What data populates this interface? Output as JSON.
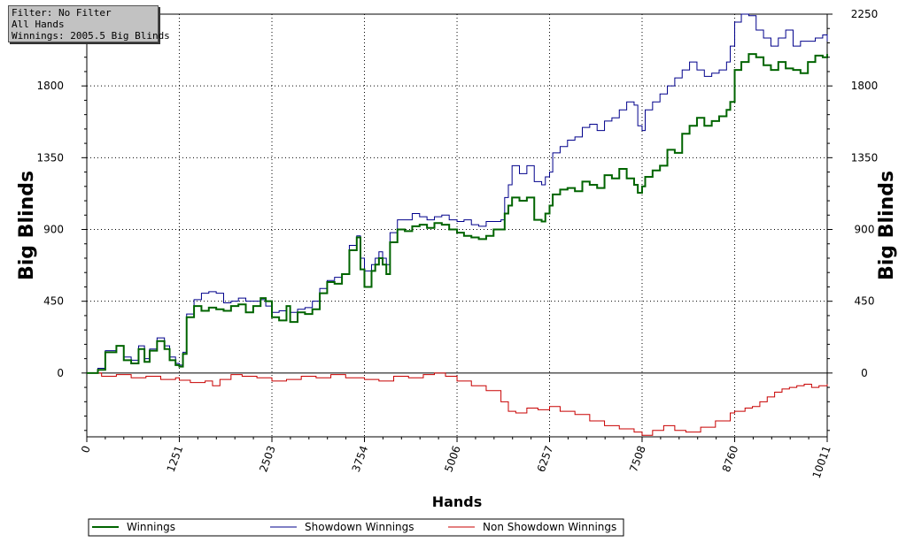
{
  "info_box": {
    "filter": "Filter: No Filter",
    "hands": "All Hands",
    "winnings": "Winnings: 2005.5 Big Blinds"
  },
  "colors": {
    "winnings": "#006400",
    "showdown": "#00008b",
    "non_showdown": "#c80000"
  },
  "chart_data": {
    "type": "line",
    "xlabel": "Hands",
    "ylabel_left": "Big Blinds",
    "ylabel_right": "Big Blinds",
    "xlim": [
      0,
      10011
    ],
    "ylim": [
      -400,
      2250
    ],
    "x_ticks": [
      "0",
      "1251",
      "2503",
      "3754",
      "5006",
      "6257",
      "7508",
      "8760",
      "10011"
    ],
    "y_ticks": [
      "0",
      "450",
      "900",
      "1350",
      "1800",
      "2250"
    ],
    "grid": true,
    "legend_position": "bottom",
    "series": [
      {
        "name": "Winnings",
        "color_key": "winnings",
        "x": [
          0,
          150,
          250,
          400,
          500,
          600,
          700,
          780,
          850,
          950,
          1050,
          1120,
          1200,
          1251,
          1300,
          1350,
          1450,
          1550,
          1650,
          1750,
          1850,
          1950,
          2050,
          2150,
          2250,
          2350,
          2420,
          2503,
          2600,
          2700,
          2750,
          2850,
          2950,
          3050,
          3150,
          3250,
          3350,
          3450,
          3550,
          3650,
          3700,
          3754,
          3850,
          3900,
          3950,
          4000,
          4050,
          4100,
          4200,
          4300,
          4400,
          4500,
          4600,
          4700,
          4800,
          4900,
          5006,
          5100,
          5200,
          5300,
          5400,
          5500,
          5600,
          5650,
          5700,
          5750,
          5850,
          5950,
          6050,
          6150,
          6200,
          6257,
          6300,
          6400,
          6500,
          6600,
          6700,
          6800,
          6900,
          7000,
          7100,
          7200,
          7300,
          7400,
          7450,
          7508,
          7550,
          7650,
          7750,
          7850,
          7950,
          8050,
          8150,
          8250,
          8350,
          8450,
          8550,
          8650,
          8700,
          8760,
          8850,
          8950,
          9050,
          9150,
          9250,
          9350,
          9450,
          9550,
          9650,
          9750,
          9850,
          9950,
          10011
        ],
        "y": [
          0,
          20,
          130,
          170,
          80,
          60,
          150,
          70,
          140,
          200,
          150,
          80,
          50,
          40,
          120,
          350,
          420,
          390,
          410,
          400,
          390,
          420,
          430,
          380,
          420,
          470,
          450,
          350,
          330,
          420,
          320,
          380,
          370,
          400,
          500,
          570,
          560,
          620,
          770,
          850,
          650,
          540,
          640,
          680,
          720,
          680,
          620,
          820,
          900,
          890,
          920,
          930,
          910,
          940,
          930,
          900,
          880,
          860,
          850,
          840,
          860,
          900,
          900,
          1000,
          1050,
          1100,
          1080,
          1100,
          960,
          950,
          1000,
          1050,
          1120,
          1150,
          1160,
          1140,
          1200,
          1180,
          1160,
          1240,
          1220,
          1280,
          1220,
          1180,
          1130,
          1170,
          1230,
          1270,
          1300,
          1400,
          1380,
          1500,
          1550,
          1600,
          1550,
          1580,
          1610,
          1650,
          1700,
          1900,
          1950,
          2000,
          1980,
          1930,
          1900,
          1950,
          1910,
          1900,
          1880,
          1950,
          1990,
          1980,
          2000
        ]
      },
      {
        "name": "Showdown Winnings",
        "color_key": "showdown",
        "x": [
          0,
          150,
          250,
          400,
          500,
          600,
          700,
          780,
          850,
          950,
          1050,
          1120,
          1200,
          1251,
          1300,
          1350,
          1450,
          1550,
          1650,
          1750,
          1850,
          1950,
          2050,
          2150,
          2250,
          2350,
          2420,
          2503,
          2600,
          2700,
          2750,
          2850,
          2950,
          3050,
          3150,
          3250,
          3350,
          3450,
          3550,
          3650,
          3700,
          3754,
          3850,
          3900,
          3950,
          4000,
          4050,
          4100,
          4200,
          4300,
          4400,
          4500,
          4600,
          4700,
          4800,
          4900,
          5006,
          5100,
          5200,
          5300,
          5400,
          5500,
          5600,
          5650,
          5700,
          5750,
          5850,
          5950,
          6050,
          6150,
          6200,
          6257,
          6300,
          6400,
          6500,
          6600,
          6700,
          6800,
          6900,
          7000,
          7100,
          7200,
          7300,
          7400,
          7450,
          7508,
          7550,
          7650,
          7750,
          7850,
          7950,
          8050,
          8150,
          8250,
          8350,
          8450,
          8550,
          8650,
          8700,
          8760,
          8850,
          8950,
          9050,
          9150,
          9250,
          9350,
          9450,
          9550,
          9650,
          9750,
          9850,
          9950,
          10011
        ],
        "y": [
          0,
          30,
          140,
          170,
          100,
          80,
          170,
          90,
          150,
          220,
          170,
          100,
          60,
          50,
          130,
          370,
          460,
          500,
          510,
          500,
          440,
          450,
          470,
          450,
          450,
          460,
          420,
          380,
          390,
          420,
          380,
          400,
          410,
          450,
          530,
          580,
          600,
          620,
          800,
          860,
          720,
          640,
          680,
          720,
          760,
          720,
          680,
          880,
          960,
          960,
          1000,
          980,
          960,
          980,
          990,
          960,
          950,
          960,
          930,
          920,
          950,
          950,
          960,
          1100,
          1180,
          1300,
          1250,
          1300,
          1200,
          1180,
          1230,
          1260,
          1380,
          1420,
          1460,
          1480,
          1540,
          1560,
          1520,
          1580,
          1600,
          1650,
          1700,
          1680,
          1550,
          1520,
          1650,
          1700,
          1750,
          1800,
          1850,
          1900,
          1950,
          1900,
          1860,
          1880,
          1900,
          1950,
          2050,
          2200,
          2250,
          2240,
          2150,
          2100,
          2050,
          2100,
          2150,
          2050,
          2080,
          2080,
          2100,
          2120,
          2080
        ]
      },
      {
        "name": "Non Showdown Winnings",
        "color_key": "non_showdown",
        "x": [
          0,
          200,
          400,
          600,
          800,
          1000,
          1200,
          1251,
          1400,
          1600,
          1700,
          1800,
          1950,
          2100,
          2300,
          2503,
          2700,
          2900,
          3100,
          3300,
          3500,
          3754,
          3950,
          4150,
          4350,
          4550,
          4700,
          4850,
          5006,
          5200,
          5400,
          5600,
          5700,
          5800,
          5950,
          6100,
          6257,
          6400,
          6600,
          6800,
          7000,
          7200,
          7400,
          7508,
          7650,
          7800,
          7950,
          8100,
          8300,
          8500,
          8700,
          8760,
          8900,
          9000,
          9100,
          9200,
          9300,
          9400,
          9500,
          9600,
          9700,
          9800,
          9900,
          10011
        ],
        "y": [
          0,
          -20,
          -10,
          -30,
          -20,
          -40,
          -30,
          -45,
          -60,
          -50,
          -80,
          -40,
          -10,
          -20,
          -30,
          -50,
          -40,
          -20,
          -30,
          -10,
          -30,
          -40,
          -50,
          -20,
          -30,
          -10,
          0,
          -20,
          -50,
          -80,
          -110,
          -180,
          -240,
          -250,
          -220,
          -230,
          -210,
          -240,
          -260,
          -300,
          -330,
          -350,
          -370,
          -390,
          -360,
          -330,
          -360,
          -370,
          -340,
          -300,
          -250,
          -240,
          -220,
          -210,
          -180,
          -150,
          -120,
          -100,
          -90,
          -80,
          -70,
          -90,
          -80,
          -70
        ]
      }
    ]
  }
}
